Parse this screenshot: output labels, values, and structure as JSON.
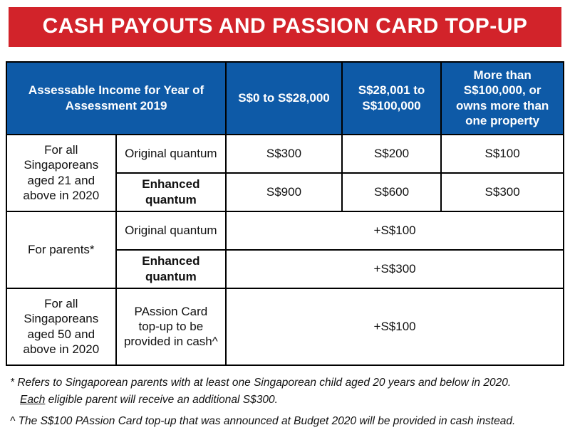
{
  "banner": {
    "title": "CASH PAYOUTS AND PASSION CARD TOP-UP"
  },
  "colors": {
    "banner_bg": "#d2232a",
    "header_bg": "#0e5aa7",
    "header_text": "#ffffff",
    "border": "#000000"
  },
  "table": {
    "header": {
      "income_label": "Assessable Income for Year of Assessment 2019",
      "bracket_low": "S$0 to S$28,000",
      "bracket_mid": "S$28,001 to S$100,000",
      "bracket_high": "More than S$100,000, or owns more than one property"
    },
    "groups": [
      {
        "label": "For all Singaporeans aged 21 and above in 2020",
        "rows": [
          {
            "type": "Original quantum",
            "values": [
              "S$300",
              "S$200",
              "S$100"
            ]
          },
          {
            "type": "Enhanced quantum",
            "values": [
              "S$900",
              "S$600",
              "S$300"
            ]
          }
        ]
      },
      {
        "label": "For parents*",
        "rows": [
          {
            "type": "Original quantum",
            "value": "+S$100"
          },
          {
            "type": "Enhanced quantum",
            "value": "+S$300"
          }
        ]
      },
      {
        "label": "For all Singaporeans aged 50 and above in 2020",
        "rows": [
          {
            "type": "PAssion Card top-up to be provided in cash^",
            "value": "+S$100"
          }
        ]
      }
    ]
  },
  "footnotes": {
    "parents_line1": "* Refers to Singaporean parents with at least one Singaporean child aged 20 years and below in 2020.",
    "parents_each": "Each",
    "parents_line2_rest": " eligible parent will receive an additional S$300.",
    "passion_note": "^ The S$100 PAssion Card top-up that was announced at Budget 2020 will be provided in cash instead."
  }
}
